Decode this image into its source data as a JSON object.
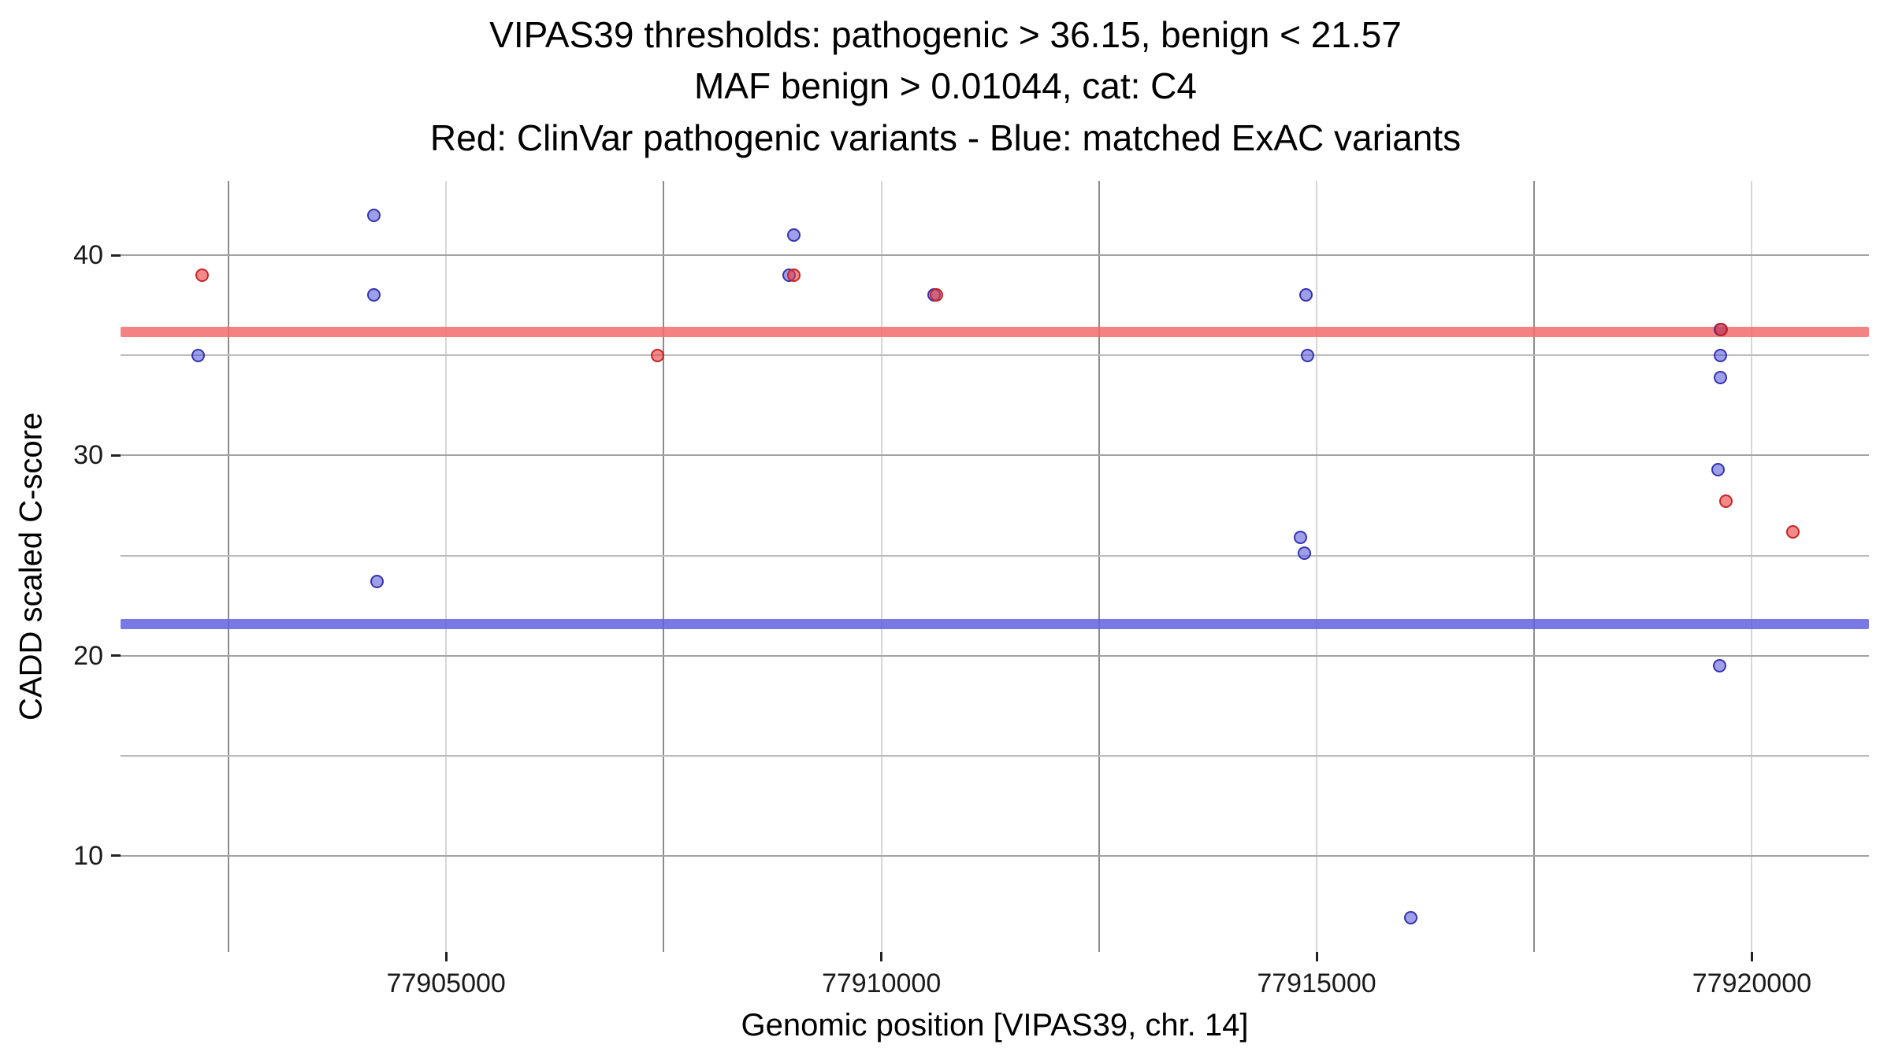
{
  "chart_data": {
    "type": "scatter",
    "title_lines": [
      "VIPAS39 thresholds: pathogenic > 36.15, benign < 21.57",
      "MAF benign > 0.01044, cat: C4",
      "Red: ClinVar pathogenic variants - Blue: matched ExAC variants"
    ],
    "xlabel": "Genomic position [VIPAS39, chr. 14]",
    "ylabel": "CADD scaled C-score",
    "xlim": [
      77901260,
      77921345
    ],
    "ylim": [
      5.2,
      43.7
    ],
    "x_ticks": [
      77905000,
      77910000,
      77915000,
      77920000
    ],
    "x_tick_labels": [
      "77905000",
      "77910000",
      "77915000",
      "77920000"
    ],
    "x_minor_gridlines": [
      77902500,
      77907500,
      77912500,
      77917500
    ],
    "y_ticks": [
      10,
      20,
      30,
      40
    ],
    "y_tick_labels": [
      "10",
      "20",
      "30",
      "40"
    ],
    "y_minor_gridlines": [
      15,
      25,
      35
    ],
    "grid": true,
    "legend_position": "none",
    "thresholds": [
      {
        "id": "pathogenic",
        "label": "pathogenic threshold",
        "value": 36.15,
        "color": "rgba(242,108,108,0.85)"
      },
      {
        "id": "benign",
        "label": "benign threshold",
        "value": 21.57,
        "color": "rgba(98,98,226,0.85)"
      }
    ],
    "series": [
      {
        "id": "exac",
        "name": "matched ExAC variants",
        "color": "#5050d2",
        "fill": "rgba(80,80,215,0.55)",
        "stroke": "rgba(45,45,175,0.95)",
        "points": [
          [
            77902150,
            35.0
          ],
          [
            77904170,
            42.0
          ],
          [
            77904170,
            38.0
          ],
          [
            77904210,
            23.7
          ],
          [
            77908990,
            41.0
          ],
          [
            77908940,
            39.0
          ],
          [
            77910610,
            38.0
          ],
          [
            77914880,
            38.0
          ],
          [
            77914900,
            35.0
          ],
          [
            77914810,
            25.9
          ],
          [
            77914860,
            25.1
          ],
          [
            77916080,
            6.9
          ],
          [
            77919640,
            36.3
          ],
          [
            77919640,
            35.0
          ],
          [
            77919640,
            33.9
          ],
          [
            77919610,
            29.3
          ],
          [
            77919630,
            19.5
          ]
        ]
      },
      {
        "id": "clinvar",
        "name": "ClinVar pathogenic variants",
        "color": "#e03c3c",
        "fill": "rgba(235,60,60,0.6)",
        "stroke": "rgba(198,32,32,0.95)",
        "points": [
          [
            77902200,
            39.0
          ],
          [
            77907430,
            35.0
          ],
          [
            77908990,
            39.0
          ],
          [
            77910630,
            38.0
          ],
          [
            77919650,
            36.3
          ],
          [
            77919700,
            27.7
          ],
          [
            77920470,
            26.2
          ]
        ]
      }
    ]
  }
}
